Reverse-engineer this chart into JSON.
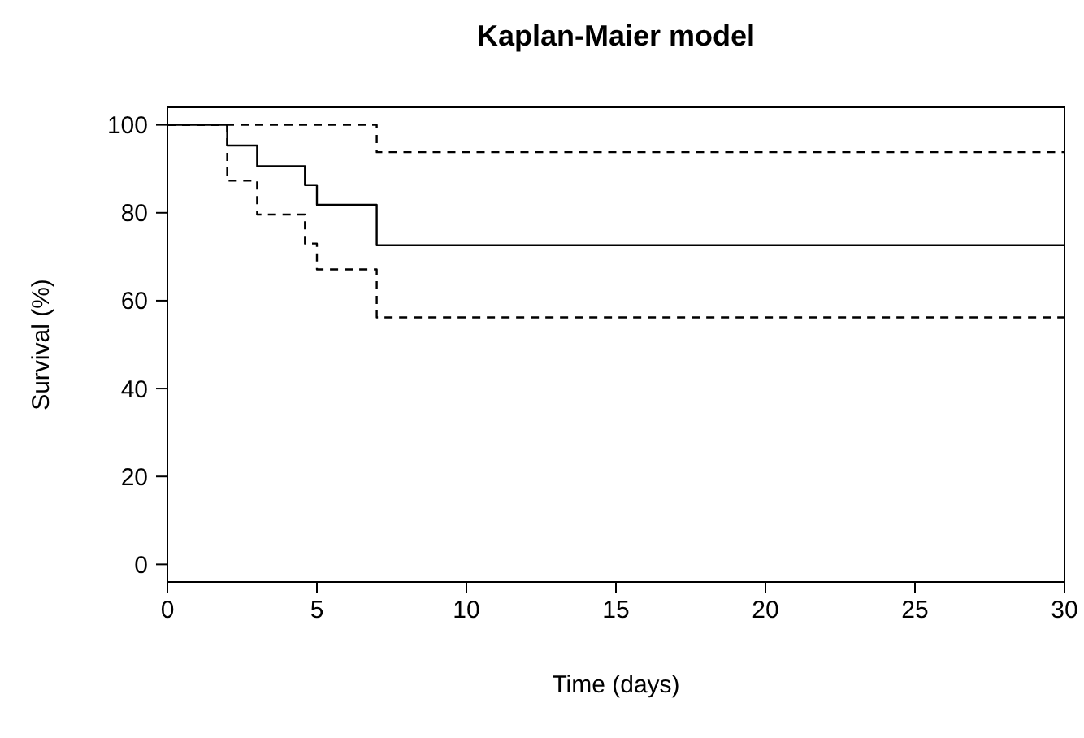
{
  "chart_data": {
    "type": "step",
    "title": "Kaplan-Maier model",
    "xlabel": "Time (days)",
    "ylabel": "Survival (%)",
    "xlim": [
      0,
      30
    ],
    "ylim": [
      -4,
      104
    ],
    "xticks": [
      0,
      5,
      10,
      15,
      20,
      25,
      30
    ],
    "yticks": [
      0,
      20,
      40,
      60,
      80,
      100
    ],
    "grid": false,
    "series": [
      {
        "color": "#000000",
        "line_style": "solid",
        "x": [
          0,
          2,
          3,
          4.6,
          5,
          7,
          30
        ],
        "values": [
          100,
          95.3,
          90.6,
          86.3,
          81.8,
          72.6,
          72.6
        ]
      },
      {
        "color": "#000000",
        "line_style": "dashed",
        "x": [
          0,
          7,
          30
        ],
        "values": [
          100,
          93.8,
          93.8
        ]
      },
      {
        "color": "#000000",
        "line_style": "dashed",
        "x": [
          0,
          2,
          3,
          4.6,
          5,
          7,
          30
        ],
        "values": [
          100,
          87.3,
          79.6,
          73,
          67.1,
          56.2,
          56.2
        ]
      }
    ]
  }
}
